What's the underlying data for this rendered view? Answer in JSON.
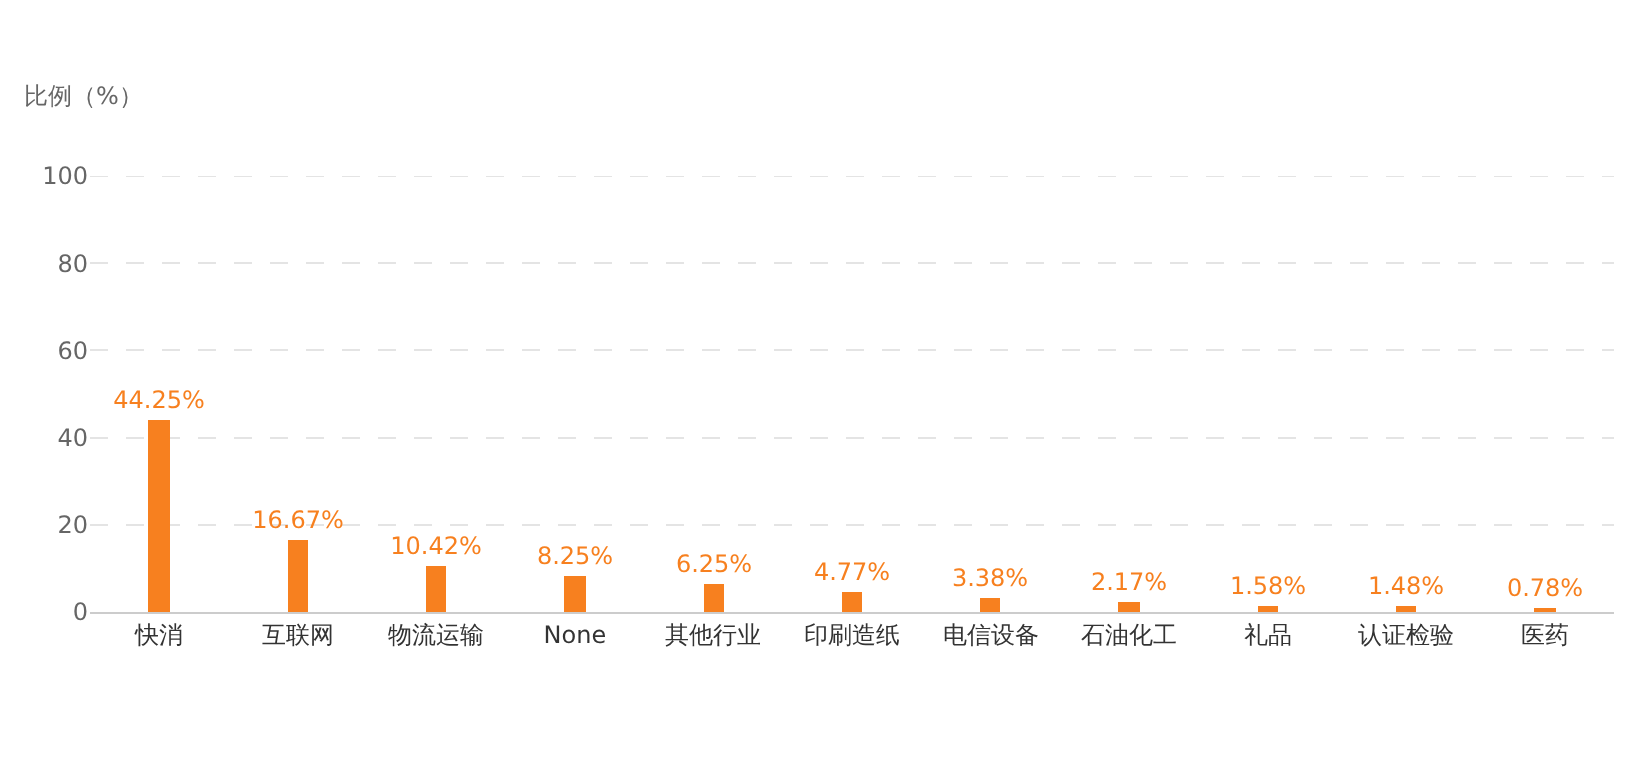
{
  "chart_data": {
    "type": "bar",
    "ylabel": "比例（%）",
    "categories": [
      "快消",
      "互联网",
      "物流运输",
      "None",
      "其他行业",
      "印刷造纸",
      "电信设备",
      "石油化工",
      "礼品",
      "认证检验",
      "医药"
    ],
    "values": [
      44.25,
      16.67,
      10.42,
      8.25,
      6.25,
      4.77,
      3.38,
      2.17,
      1.58,
      1.48,
      0.78
    ],
    "value_labels": [
      "44.25%",
      "16.67%",
      "10.42%",
      "8.25%",
      "6.25%",
      "4.77%",
      "3.38%",
      "2.17%",
      "1.58%",
      "1.48%",
      "0.78%"
    ],
    "color": "#f7801f",
    "ylim": [
      0,
      100
    ],
    "yticks": [
      0,
      20,
      40,
      60,
      80,
      100
    ],
    "grid": "y"
  }
}
